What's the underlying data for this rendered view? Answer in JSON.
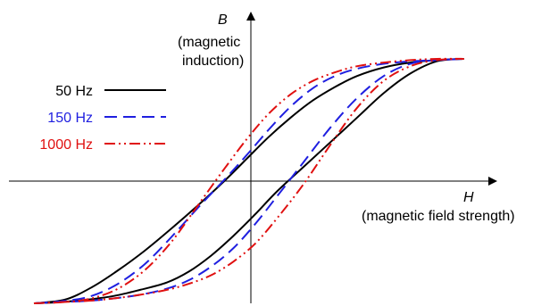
{
  "chart_data": {
    "type": "line",
    "title": "",
    "x_axis": {
      "symbol": "H",
      "label": "(magnetic field strength)",
      "range": [
        -1,
        1
      ],
      "ticks": false
    },
    "y_axis": {
      "symbol": "B",
      "label_lines": [
        "(magnetic",
        "induction)"
      ],
      "range": [
        -1,
        1
      ],
      "ticks": false
    },
    "grid": false,
    "legend_position": "left",
    "series": [
      {
        "name": "50 Hz",
        "color": "#000000",
        "dash": "solid",
        "x": [
          -0.98,
          -0.86,
          -0.74,
          -0.62,
          -0.5,
          -0.38,
          -0.28,
          -0.18,
          -0.08,
          0.02,
          0.12,
          0.24,
          0.36,
          0.48,
          0.6,
          0.72,
          0.84,
          0.96,
          0.84,
          0.72,
          0.6,
          0.48,
          0.38,
          0.28,
          0.18,
          0.08,
          -0.02,
          -0.12,
          -0.24,
          -0.36,
          -0.48,
          -0.6,
          -0.72,
          -0.84,
          -0.98
        ],
        "y": [
          -1.0,
          -0.99,
          -0.97,
          -0.94,
          -0.89,
          -0.83,
          -0.74,
          -0.61,
          -0.45,
          -0.27,
          -0.08,
          0.12,
          0.32,
          0.52,
          0.72,
          0.88,
          0.98,
          1.0,
          0.99,
          0.97,
          0.93,
          0.86,
          0.77,
          0.66,
          0.52,
          0.36,
          0.18,
          0.0,
          -0.2,
          -0.39,
          -0.57,
          -0.73,
          -0.87,
          -0.97,
          -1.0
        ]
      },
      {
        "name": "150 Hz",
        "color": "#1f1fe0",
        "dash": "long-dash",
        "x": [
          -0.98,
          -0.86,
          -0.74,
          -0.62,
          -0.5,
          -0.38,
          -0.28,
          -0.18,
          -0.08,
          0.02,
          0.12,
          0.24,
          0.36,
          0.48,
          0.6,
          0.72,
          0.84,
          0.96,
          0.84,
          0.72,
          0.6,
          0.48,
          0.38,
          0.28,
          0.18,
          0.08,
          -0.02,
          -0.12,
          -0.24,
          -0.36,
          -0.48,
          -0.6,
          -0.72,
          -0.84,
          -0.98
        ],
        "y": [
          -1.0,
          -0.99,
          -0.98,
          -0.96,
          -0.93,
          -0.88,
          -0.81,
          -0.7,
          -0.55,
          -0.35,
          -0.12,
          0.16,
          0.44,
          0.68,
          0.86,
          0.96,
          0.99,
          1.0,
          0.99,
          0.98,
          0.96,
          0.92,
          0.86,
          0.76,
          0.61,
          0.42,
          0.21,
          0.01,
          -0.22,
          -0.46,
          -0.68,
          -0.84,
          -0.94,
          -0.98,
          -1.0
        ]
      },
      {
        "name": "1000 Hz",
        "color": "#e01010",
        "dash": "dash-dot-dot",
        "x": [
          -0.98,
          -0.86,
          -0.74,
          -0.62,
          -0.5,
          -0.38,
          -0.28,
          -0.18,
          -0.08,
          0.02,
          0.12,
          0.24,
          0.36,
          0.48,
          0.6,
          0.72,
          0.84,
          0.96,
          0.84,
          0.72,
          0.6,
          0.48,
          0.38,
          0.28,
          0.18,
          0.08,
          -0.02,
          -0.12,
          -0.24,
          -0.36,
          -0.48,
          -0.6,
          -0.72,
          -0.84,
          -0.98
        ],
        "y": [
          -1.0,
          -0.99,
          -0.98,
          -0.96,
          -0.93,
          -0.89,
          -0.84,
          -0.77,
          -0.66,
          -0.51,
          -0.3,
          -0.02,
          0.3,
          0.6,
          0.82,
          0.94,
          0.99,
          1.0,
          1.0,
          0.99,
          0.97,
          0.94,
          0.89,
          0.82,
          0.71,
          0.55,
          0.34,
          0.1,
          -0.2,
          -0.5,
          -0.73,
          -0.88,
          -0.96,
          -0.99,
          -1.0
        ]
      }
    ]
  }
}
